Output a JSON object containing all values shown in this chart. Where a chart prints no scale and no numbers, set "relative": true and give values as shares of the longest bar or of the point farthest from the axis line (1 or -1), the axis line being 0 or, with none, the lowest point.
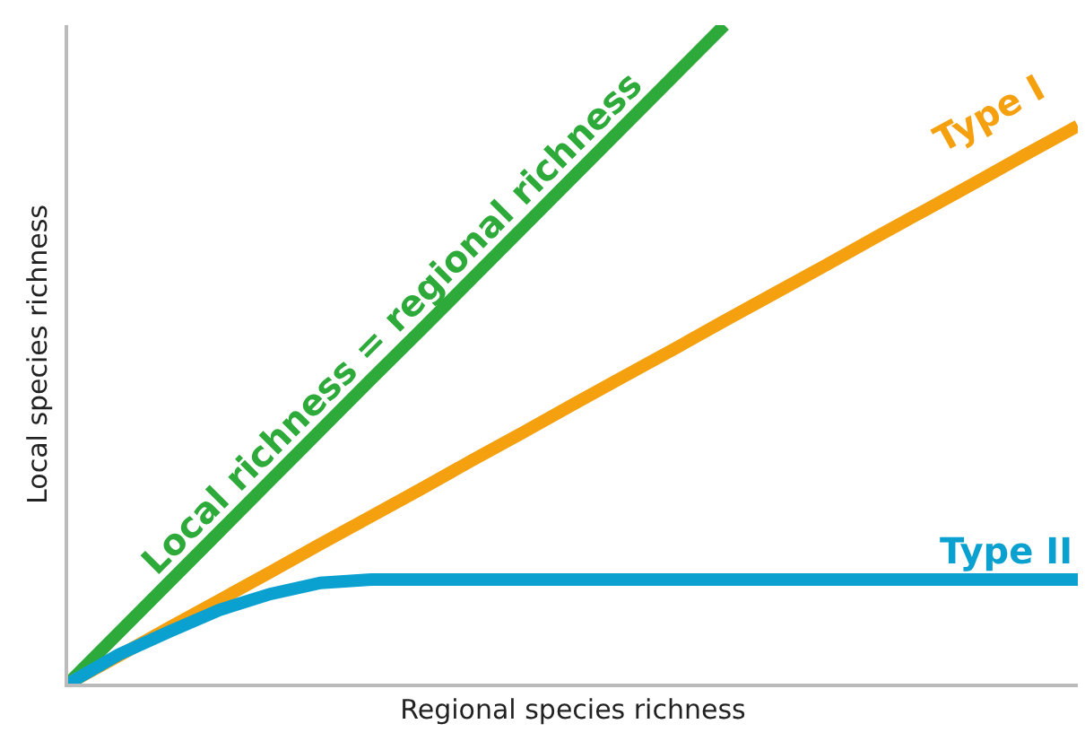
{
  "chart_data": {
    "type": "line",
    "relative": true,
    "xlabel": "Regional species richness",
    "ylabel": "Local species richness",
    "grid": false,
    "legend": false,
    "marker": "none",
    "line_style": "solid",
    "categories": [
      null,
      null,
      null,
      null,
      null,
      null,
      null,
      null,
      null,
      null,
      null,
      null,
      null,
      null,
      null,
      null,
      null,
      null,
      null,
      null,
      null
    ],
    "series": [
      {
        "name": "Local richness = regional richness",
        "color": "#2eaa3a",
        "values": [
          0,
          0.077,
          0.154,
          0.231,
          0.308,
          0.385,
          0.462,
          0.538,
          0.615,
          0.692,
          0.769,
          0.846,
          0.923,
          1,
          null,
          null,
          null,
          null,
          null,
          null,
          null
        ]
      },
      {
        "name": "Type I",
        "color": "#f5a00f",
        "values": [
          0,
          0.042,
          0.085,
          0.127,
          0.169,
          0.212,
          0.254,
          0.296,
          0.339,
          0.381,
          0.424,
          0.466,
          0.508,
          0.551,
          0.593,
          0.635,
          0.678,
          0.72,
          0.762,
          0.805,
          0.847
        ]
      },
      {
        "name": "Type II",
        "color": "#0aa0d0",
        "values": [
          0,
          0.044,
          0.079,
          0.112,
          0.136,
          0.153,
          0.158,
          0.158,
          0.158,
          0.158,
          0.158,
          0.158,
          0.158,
          0.158,
          0.158,
          0.158,
          0.158,
          0.158,
          0.158,
          0.158,
          0.158
        ]
      }
    ]
  }
}
